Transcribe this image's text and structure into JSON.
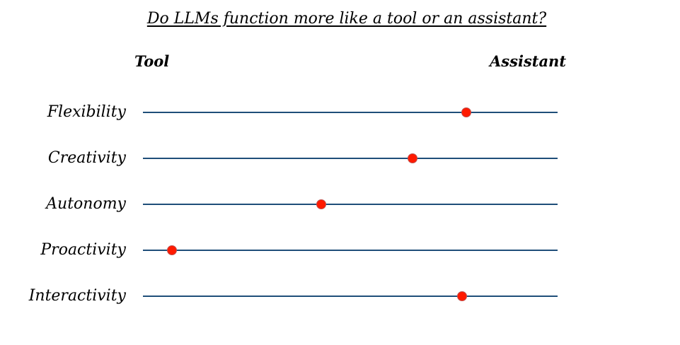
{
  "title": "Do LLMs function more like a tool or an assistant?",
  "scale": {
    "left_label": "Tool",
    "right_label": "Assistant"
  },
  "colors": {
    "line": "#1f4e79",
    "marker": "#ff1a00",
    "marker_border": "#c0504d"
  },
  "rows": [
    {
      "label": "Flexibility",
      "position": 0.78
    },
    {
      "label": "Creativity",
      "position": 0.65
    },
    {
      "label": "Autonomy",
      "position": 0.43
    },
    {
      "label": "Proactivity",
      "position": 0.07
    },
    {
      "label": "Interactivity",
      "position": 0.77
    }
  ]
}
